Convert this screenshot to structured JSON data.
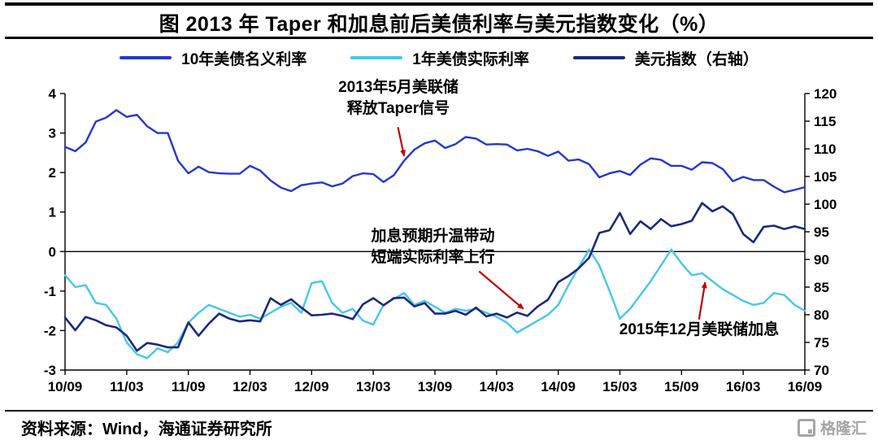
{
  "header": {
    "title": "图  2013 年 Taper 和加息前后美债利率与美元指数变化（%）"
  },
  "footer": {
    "source_label": "资料来源：",
    "source_value": "Wind，海通证券研究所",
    "logo_text": "格隆汇"
  },
  "chart_data": {
    "type": "line",
    "title": "2013 年 Taper 和加息前后美债利率与美元指数变化（%）",
    "legend_position": "top",
    "grid": false,
    "arrow_color": "#c00000",
    "x_tick_labels": [
      "10/09",
      "11/03",
      "11/09",
      "12/03",
      "12/09",
      "13/03",
      "13/09",
      "14/03",
      "14/09",
      "15/03",
      "15/09",
      "16/03",
      "16/09"
    ],
    "label_every": 6,
    "left_axis": {
      "min": -3,
      "max": 4,
      "ticks": [
        4,
        3,
        2,
        1,
        0,
        -1,
        -2,
        -3
      ]
    },
    "right_axis": {
      "min": 70,
      "max": 120,
      "ticks": [
        120,
        115,
        110,
        105,
        100,
        95,
        90,
        85,
        80,
        75,
        70
      ]
    },
    "series": [
      {
        "name": "10年美债名义利率",
        "axis": "left",
        "color": "#2438cf",
        "values": [
          2.65,
          2.54,
          2.76,
          3.29,
          3.39,
          3.58,
          3.41,
          3.46,
          3.17,
          3.0,
          3.0,
          2.3,
          1.98,
          2.15,
          2.01,
          1.98,
          1.97,
          1.97,
          2.17,
          2.05,
          1.8,
          1.62,
          1.53,
          1.68,
          1.72,
          1.75,
          1.65,
          1.72,
          1.91,
          1.98,
          1.96,
          1.76,
          1.93,
          2.3,
          2.58,
          2.74,
          2.81,
          2.62,
          2.72,
          2.9,
          2.86,
          2.71,
          2.72,
          2.71,
          2.56,
          2.6,
          2.54,
          2.42,
          2.53,
          2.3,
          2.33,
          2.21,
          1.88,
          1.98,
          2.04,
          1.94,
          2.2,
          2.36,
          2.32,
          2.17,
          2.17,
          2.07,
          2.26,
          2.24,
          2.09,
          1.78,
          1.89,
          1.81,
          1.81,
          1.64,
          1.5,
          1.56,
          1.63
        ]
      },
      {
        "name": "1年美债实际利率",
        "axis": "left",
        "color": "#45c7ec",
        "values": [
          -0.6,
          -0.9,
          -0.85,
          -1.3,
          -1.35,
          -1.7,
          -2.3,
          -2.6,
          -2.7,
          -2.45,
          -2.55,
          -2.3,
          -1.8,
          -1.55,
          -1.35,
          -1.45,
          -1.55,
          -1.65,
          -1.6,
          -1.7,
          -1.55,
          -1.4,
          -1.3,
          -1.55,
          -0.8,
          -0.75,
          -1.3,
          -1.55,
          -1.45,
          -1.75,
          -1.85,
          -1.35,
          -1.2,
          -1.05,
          -1.35,
          -1.25,
          -1.4,
          -1.55,
          -1.45,
          -1.5,
          -1.45,
          -1.55,
          -1.65,
          -1.8,
          -2.05,
          -1.9,
          -1.75,
          -1.6,
          -1.35,
          -0.85,
          -0.4,
          0.05,
          -0.35,
          -1.0,
          -1.7,
          -1.45,
          -1.1,
          -0.75,
          -0.35,
          0.05,
          -0.3,
          -0.6,
          -0.55,
          -0.75,
          -0.95,
          -1.1,
          -1.25,
          -1.35,
          -1.3,
          -1.05,
          -1.1,
          -1.35,
          -1.5
        ]
      },
      {
        "name": "美元指数（右轴）",
        "axis": "right",
        "color": "#1b2a7d",
        "values": [
          79.5,
          77.2,
          79.6,
          79.0,
          78.1,
          77.7,
          76.2,
          73.5,
          74.9,
          74.6,
          74.1,
          74.1,
          78.6,
          76.2,
          78.4,
          80.2,
          79.3,
          78.8,
          79.0,
          78.8,
          83.0,
          81.8,
          82.8,
          81.3,
          79.9,
          80.0,
          80.2,
          79.8,
          79.2,
          81.9,
          83.0,
          81.7,
          83.0,
          83.1,
          81.5,
          82.1,
          80.2,
          80.2,
          80.7,
          80.0,
          81.3,
          79.7,
          80.2,
          79.5,
          80.4,
          79.8,
          81.5,
          82.7,
          85.9,
          87.0,
          88.4,
          90.3,
          94.8,
          95.3,
          98.4,
          94.6,
          96.9,
          95.5,
          97.3,
          96.0,
          96.4,
          97.0,
          100.2,
          98.7,
          99.6,
          98.2,
          94.6,
          93.1,
          95.9,
          96.1,
          95.5,
          96.0,
          95.5
        ]
      }
    ],
    "annotations": [
      {
        "lines": [
          "2013年5月美联储",
          "释放Taper信号"
        ],
        "arrow": {
          "from_month": 32.4,
          "from_value": 3.15,
          "to_month": 33.0,
          "to_value": 2.42
        }
      },
      {
        "lines": [
          "加息预期升温带动",
          "短端实际利率上行"
        ],
        "arrow": {
          "from_month": 40.3,
          "from_value": -0.5,
          "to_month": 44.6,
          "to_value": -1.45
        }
      },
      {
        "lines": [
          "2015年12月美联储加息"
        ],
        "arrow": {
          "from_month": 61.7,
          "from_value": -1.72,
          "to_month": 62.3,
          "to_value": -0.78
        }
      }
    ]
  }
}
